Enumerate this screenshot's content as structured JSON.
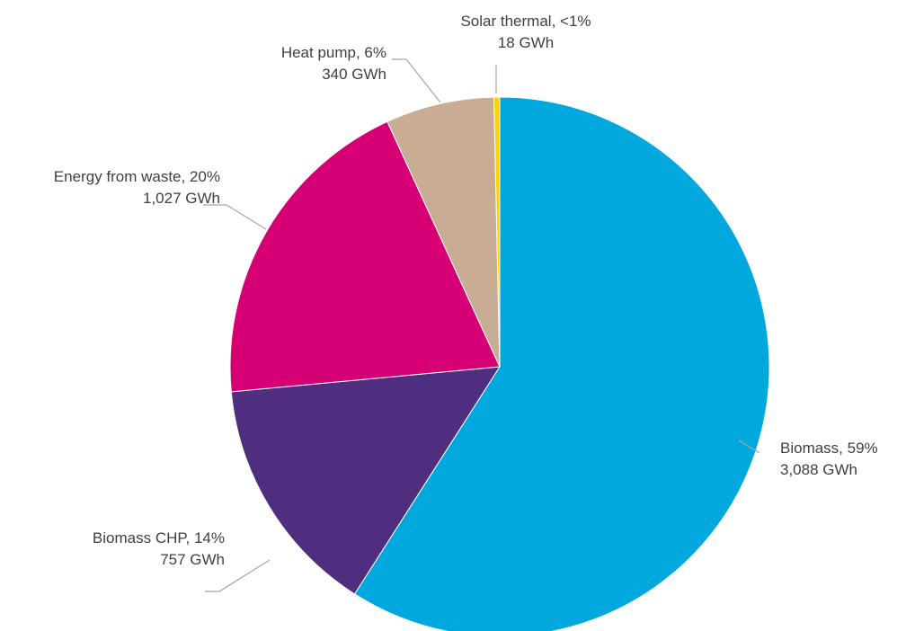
{
  "chart_data": {
    "type": "pie",
    "title": "",
    "unit": "GWh",
    "slices": [
      {
        "name": "Biomass",
        "percent_label": "59%",
        "value": 3088,
        "value_label": "3,088 GWh",
        "color": "#00a8de"
      },
      {
        "name": "Biomass CHP",
        "percent_label": "14%",
        "value": 757,
        "value_label": "757 GWh",
        "color": "#4f2d7f"
      },
      {
        "name": "Energy from waste",
        "percent_label": "20%",
        "value": 1027,
        "value_label": "1,027 GWh",
        "color": "#d60074"
      },
      {
        "name": "Heat pump",
        "percent_label": "6%",
        "value": 340,
        "value_label": "340 GWh",
        "color": "#c8ac94"
      },
      {
        "name": "Solar thermal",
        "percent_label": "<1%",
        "value": 18,
        "value_label": "18 GWh",
        "color": "#ffd100"
      }
    ],
    "start_angle_deg": 0,
    "direction": "clockwise",
    "legend": "none (labels on leader lines)"
  }
}
